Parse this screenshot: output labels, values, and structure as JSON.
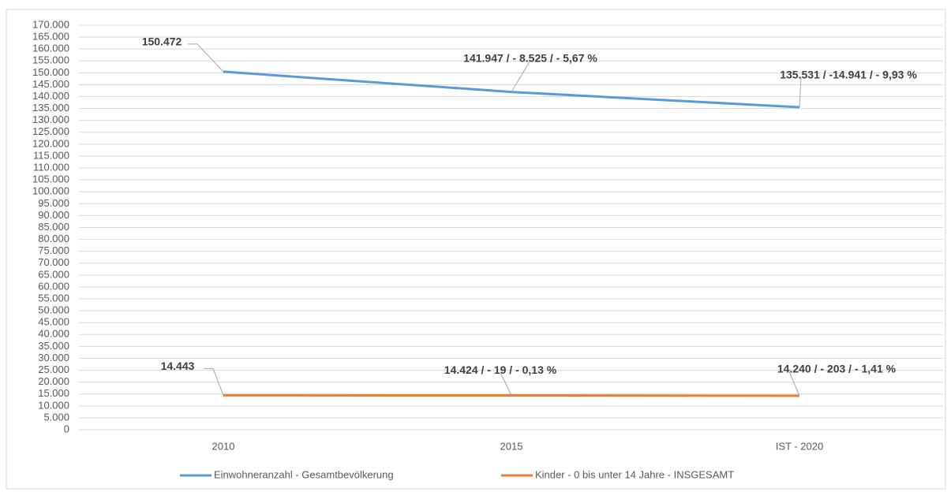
{
  "chart_data": {
    "type": "line",
    "categories": [
      "2010",
      "2015",
      "IST - 2020"
    ],
    "series": [
      {
        "name": "Einwohneranzahl - Gesamtbevölkerung",
        "color": "#5b9bd5",
        "values": [
          150472,
          141947,
          135531
        ],
        "value_labels": [
          "150.472",
          "141.947 / - 8.525 / - 5,67 %",
          "135.531 / -14.941 / - 9,93 %"
        ]
      },
      {
        "name": "Kinder - 0 bis unter 14 Jahre - INSGESAMT",
        "color": "#ed7d31",
        "values": [
          14443,
          14424,
          14240
        ],
        "value_labels": [
          "14.443",
          "14.424 / - 19 / - 0,13 %",
          "14.240 / - 203 / - 1,41 %"
        ]
      }
    ],
    "ylim": [
      0,
      170000
    ],
    "yticks": [
      0,
      {
        "value": 5000,
        "label": "5.000"
      },
      {
        "value": 10000,
        "label": "10.000"
      },
      {
        "value": 15000,
        "label": "15.000"
      },
      {
        "value": 20000,
        "label": "20.000"
      },
      {
        "value": 25000,
        "label": "25.000"
      },
      {
        "value": 30000,
        "label": "30.000"
      },
      {
        "value": 35000,
        "label": "35.000"
      },
      {
        "value": 40000,
        "label": "40.000"
      },
      {
        "value": 45000,
        "label": "45.000"
      },
      {
        "value": 50000,
        "label": "50.000"
      },
      {
        "value": 55000,
        "label": "55.000"
      },
      {
        "value": 60000,
        "label": "60.000"
      },
      {
        "value": 65000,
        "label": "65.000"
      },
      {
        "value": 70000,
        "label": "70.000"
      },
      {
        "value": 75000,
        "label": "75.000"
      },
      {
        "value": 80000,
        "label": "80.000"
      },
      {
        "value": 85000,
        "label": "85.000"
      },
      {
        "value": 90000,
        "label": "90.000"
      },
      {
        "value": 95000,
        "label": "95.000"
      },
      {
        "value": 100000,
        "label": "100.000"
      },
      {
        "value": 105000,
        "label": "105.000"
      },
      {
        "value": 110000,
        "label": "110.000"
      },
      {
        "value": 115000,
        "label": "115.000"
      },
      {
        "value": 120000,
        "label": "120.000"
      },
      {
        "value": 125000,
        "label": "125.000"
      },
      {
        "value": 130000,
        "label": "130.000"
      },
      {
        "value": 135000,
        "label": "135.000"
      },
      {
        "value": 140000,
        "label": "140.000"
      },
      {
        "value": 145000,
        "label": "145.000"
      },
      {
        "value": 150000,
        "label": "150.000"
      },
      {
        "value": 155000,
        "label": "155.000"
      },
      {
        "value": 160000,
        "label": "160.000"
      },
      {
        "value": 165000,
        "label": "165.000"
      },
      {
        "value": 170000,
        "label": "170.000"
      }
    ],
    "grid": true,
    "legend": "bottom"
  }
}
